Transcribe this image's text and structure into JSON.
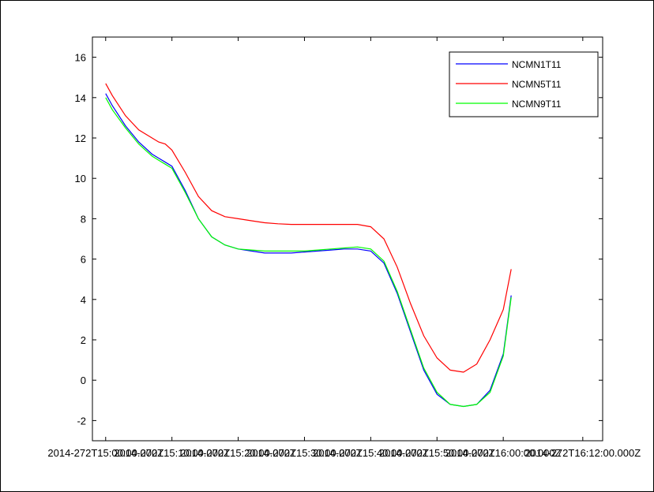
{
  "chart_data": {
    "type": "line",
    "title": "",
    "xlabel": "",
    "ylabel": "",
    "grid": false,
    "legend_position": "top-right",
    "x_tick_labels": [
      "2014-272T15:00:00.000Z",
      "2014-272T15:10:00.000Z",
      "2014-272T15:20:00.000Z",
      "2014-272T15:30:00.000Z",
      "2014-272T15:40:00.000Z",
      "2014-272T15:50:00.000Z",
      "2014-272T16:00:00.000Z",
      "2014-272T16:12:00.000Z"
    ],
    "x_tick_minutes": [
      0,
      10,
      20,
      30,
      40,
      50,
      60,
      72
    ],
    "xlim_minutes": [
      -2,
      75
    ],
    "ylim": [
      -3,
      17
    ],
    "y_ticks": [
      -2,
      0,
      2,
      4,
      6,
      8,
      10,
      12,
      14,
      16
    ],
    "series": [
      {
        "name": "NCMN1T11",
        "color": "#0000ff",
        "x": [
          0,
          1,
          3,
          5,
          7,
          8,
          9,
          10,
          12,
          14,
          16,
          18,
          20,
          22,
          24,
          26,
          28,
          30,
          32,
          34,
          36,
          38,
          40,
          42,
          44,
          46,
          48,
          50,
          52,
          54,
          56,
          58,
          60,
          61.2
        ],
        "y": [
          14.2,
          13.6,
          12.6,
          11.8,
          11.2,
          11.0,
          10.8,
          10.6,
          9.4,
          8.0,
          7.1,
          6.7,
          6.5,
          6.4,
          6.3,
          6.3,
          6.3,
          6.35,
          6.4,
          6.45,
          6.5,
          6.5,
          6.4,
          5.8,
          4.3,
          2.4,
          0.5,
          -0.7,
          -1.2,
          -1.3,
          -1.2,
          -0.5,
          1.3,
          4.2
        ]
      },
      {
        "name": "NCMN5T11",
        "color": "#ff0000",
        "x": [
          0,
          1,
          3,
          5,
          7,
          8,
          9,
          10,
          12,
          14,
          16,
          18,
          20,
          22,
          24,
          26,
          28,
          30,
          32,
          34,
          36,
          38,
          40,
          42,
          44,
          46,
          48,
          50,
          52,
          54,
          56,
          58,
          60,
          61.2
        ],
        "y": [
          14.7,
          14.1,
          13.1,
          12.4,
          12.0,
          11.8,
          11.7,
          11.4,
          10.3,
          9.1,
          8.4,
          8.1,
          8.0,
          7.9,
          7.8,
          7.75,
          7.72,
          7.72,
          7.72,
          7.72,
          7.72,
          7.72,
          7.6,
          7.0,
          5.6,
          3.8,
          2.2,
          1.1,
          0.5,
          0.4,
          0.8,
          2.0,
          3.5,
          5.5
        ]
      },
      {
        "name": "NCMN9T11",
        "color": "#00ff00",
        "x": [
          0,
          1,
          3,
          5,
          7,
          8,
          9,
          10,
          12,
          14,
          16,
          18,
          20,
          22,
          24,
          26,
          28,
          30,
          32,
          34,
          36,
          38,
          40,
          42,
          44,
          46,
          48,
          50,
          52,
          54,
          56,
          58,
          60,
          61.2
        ],
        "y": [
          14.0,
          13.4,
          12.5,
          11.7,
          11.1,
          10.9,
          10.7,
          10.5,
          9.3,
          8.0,
          7.1,
          6.7,
          6.5,
          6.45,
          6.4,
          6.4,
          6.4,
          6.4,
          6.45,
          6.5,
          6.55,
          6.6,
          6.5,
          5.9,
          4.4,
          2.5,
          0.6,
          -0.6,
          -1.2,
          -1.3,
          -1.2,
          -0.6,
          1.2,
          4.1
        ]
      }
    ]
  }
}
